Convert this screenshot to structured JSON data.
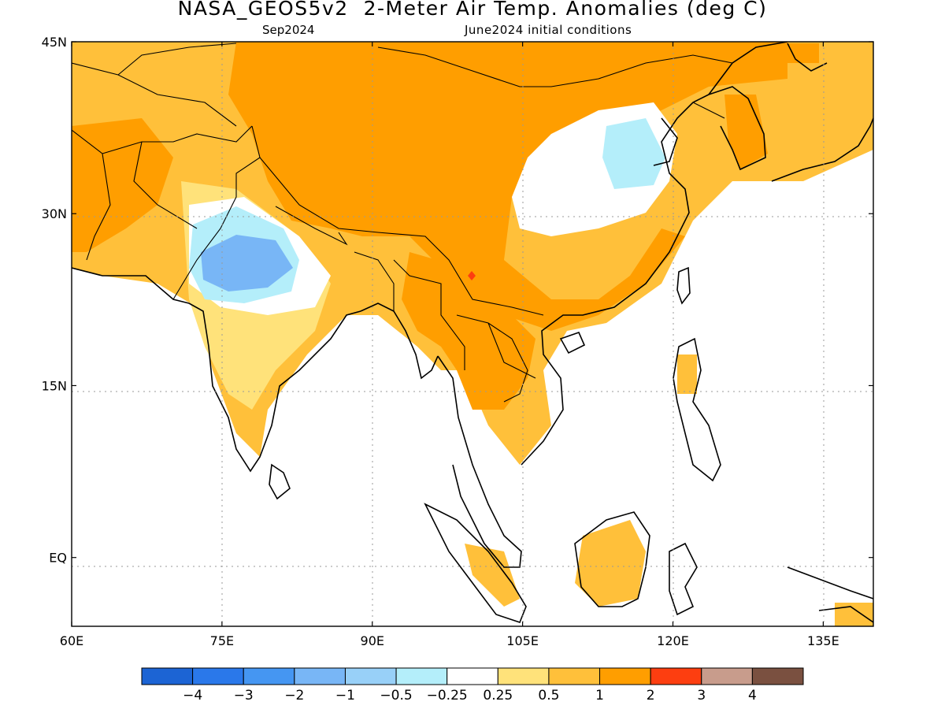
{
  "title": "NASA_GEOS5v2  2-Meter Air Temp. Anomalies (deg C)",
  "subtitle_left": "Sep2024",
  "subtitle_right": "June2024 initial conditions",
  "map": {
    "lon_range": [
      60,
      140
    ],
    "lat_range": [
      -6,
      45
    ],
    "lon_ticks": [
      {
        "value": 60,
        "label": "60E"
      },
      {
        "value": 75,
        "label": "75E"
      },
      {
        "value": 90,
        "label": "90E"
      },
      {
        "value": 105,
        "label": "105E"
      },
      {
        "value": 120,
        "label": "120E"
      },
      {
        "value": 135,
        "label": "135E"
      }
    ],
    "lat_ticks": [
      {
        "value": 45,
        "label": "45N"
      },
      {
        "value": 30,
        "label": "30N"
      },
      {
        "value": 15,
        "label": "15N"
      },
      {
        "value": 0,
        "label": "EQ"
      }
    ],
    "gridlines": "dotted"
  },
  "colorbar": {
    "colors": [
      "#1c64d4",
      "#2a78ea",
      "#4596f2",
      "#78b6f6",
      "#98d0f8",
      "#b4eefa",
      "#ffffff",
      "#ffe27a",
      "#ffc03a",
      "#ff9e00",
      "#fd3e10",
      "#c89c8c",
      "#7a5040"
    ],
    "labels": [
      "-4",
      "-3",
      "-2",
      "-1",
      "-0.5",
      "-0.25",
      "0.25",
      "0.5",
      "1",
      "2",
      "3",
      "4"
    ]
  }
}
